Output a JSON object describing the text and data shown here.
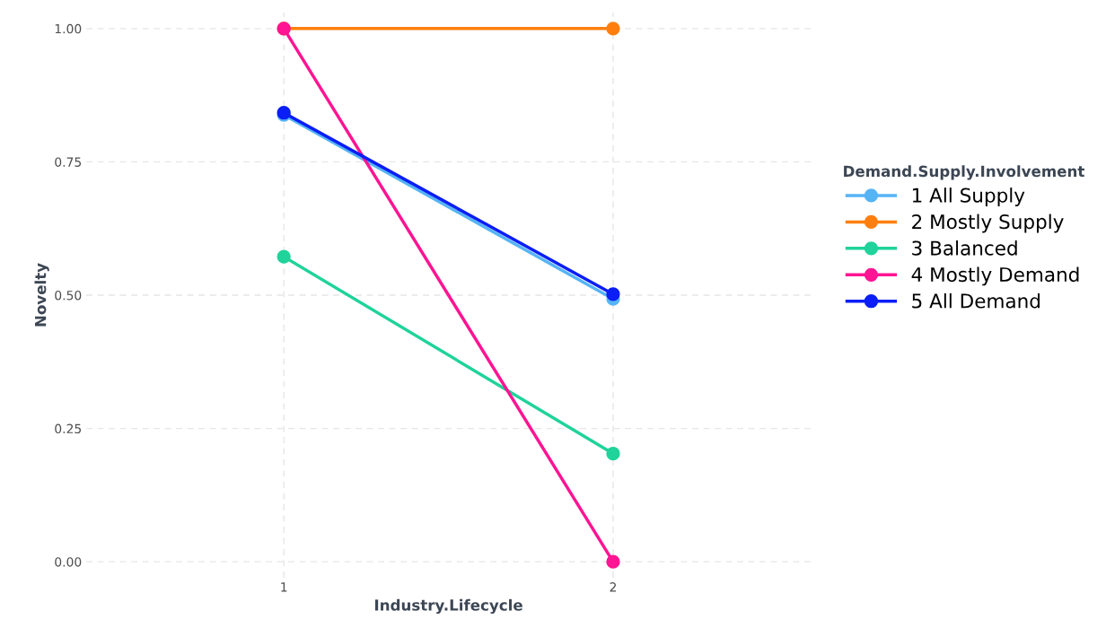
{
  "chart_data": {
    "type": "line",
    "xlabel": "Industry.Lifecycle",
    "ylabel": "Novelty",
    "legend_title": "Demand.Supply.Involvement",
    "categories": [
      "1",
      "2"
    ],
    "series": [
      {
        "name": "1 All Supply",
        "color": "#56b4f5",
        "values": [
          0.838,
          0.493
        ]
      },
      {
        "name": "2 Mostly Supply",
        "color": "#ff7f0e",
        "values": [
          1.0,
          1.0
        ]
      },
      {
        "name": "3 Balanced",
        "color": "#1fd39a",
        "values": [
          0.572,
          0.203
        ]
      },
      {
        "name": "4 Mostly Demand",
        "color": "#ff1493",
        "values": [
          1.0,
          0.0
        ]
      },
      {
        "name": "5 All Demand",
        "color": "#0a1ef5",
        "values": [
          0.842,
          0.502
        ]
      }
    ],
    "ylim": [
      -0.03,
      1.03
    ],
    "yticks": [
      {
        "value": 0,
        "label": "0.00"
      },
      {
        "value": 0.25,
        "label": "0.25"
      },
      {
        "value": 0.5,
        "label": "0.50"
      },
      {
        "value": 0.75,
        "label": "0.75"
      },
      {
        "value": 1.0,
        "label": "1.00"
      }
    ],
    "grid": true,
    "legend": "right",
    "marker": "circle",
    "line_style": "solid"
  }
}
